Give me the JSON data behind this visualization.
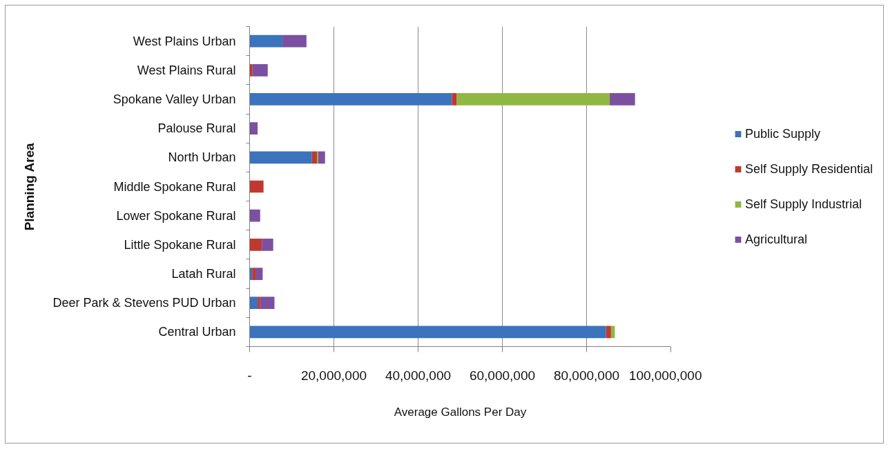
{
  "chart_data": {
    "type": "bar",
    "orientation": "horizontal",
    "stacked": true,
    "xlabel": "Average Gallons Per Day",
    "ylabel": "Planning Area",
    "categories": [
      "West Plains Urban",
      "West Plains Rural",
      "Spokane Valley Urban",
      "Palouse Rural",
      "North Urban",
      "Middle Spokane Rural",
      "Lower Spokane Rural",
      "Little Spokane Rural",
      "Latah Rural",
      "Deer Park & Stevens PUD Urban",
      "Central Urban"
    ],
    "series": [
      {
        "name": "Public Supply",
        "color": "#3b73bd",
        "values": [
          7800000,
          null,
          48000000,
          null,
          14800000,
          null,
          null,
          null,
          600000,
          1900000,
          84600000
        ]
      },
      {
        "name": "Self Supply Residential",
        "color": "#c0392f",
        "values": [
          null,
          700000,
          1200000,
          null,
          1200000,
          3300000,
          null,
          2900000,
          800000,
          600000,
          1200000
        ]
      },
      {
        "name": "Self Supply Industrial",
        "color": "#8fb843",
        "values": [
          null,
          null,
          36300000,
          null,
          300000,
          null,
          null,
          null,
          null,
          null,
          900000
        ]
      },
      {
        "name": "Agricultural",
        "color": "#7b50a0",
        "values": [
          5700000,
          3600000,
          6000000,
          1900000,
          1600000,
          null,
          2500000,
          2700000,
          1700000,
          3400000,
          null
        ]
      }
    ],
    "xlim": [
      0,
      100000000
    ],
    "xticks": [
      {
        "value": 0,
        "label": "-"
      },
      {
        "value": 20000000,
        "label": "20,000,000"
      },
      {
        "value": 40000000,
        "label": "40,000,000"
      },
      {
        "value": 60000000,
        "label": "60,000,000"
      },
      {
        "value": 80000000,
        "label": "80,000,000"
      },
      {
        "value": 100000000,
        "label": "100,000,000"
      }
    ],
    "grid": "x",
    "legend": "right"
  }
}
